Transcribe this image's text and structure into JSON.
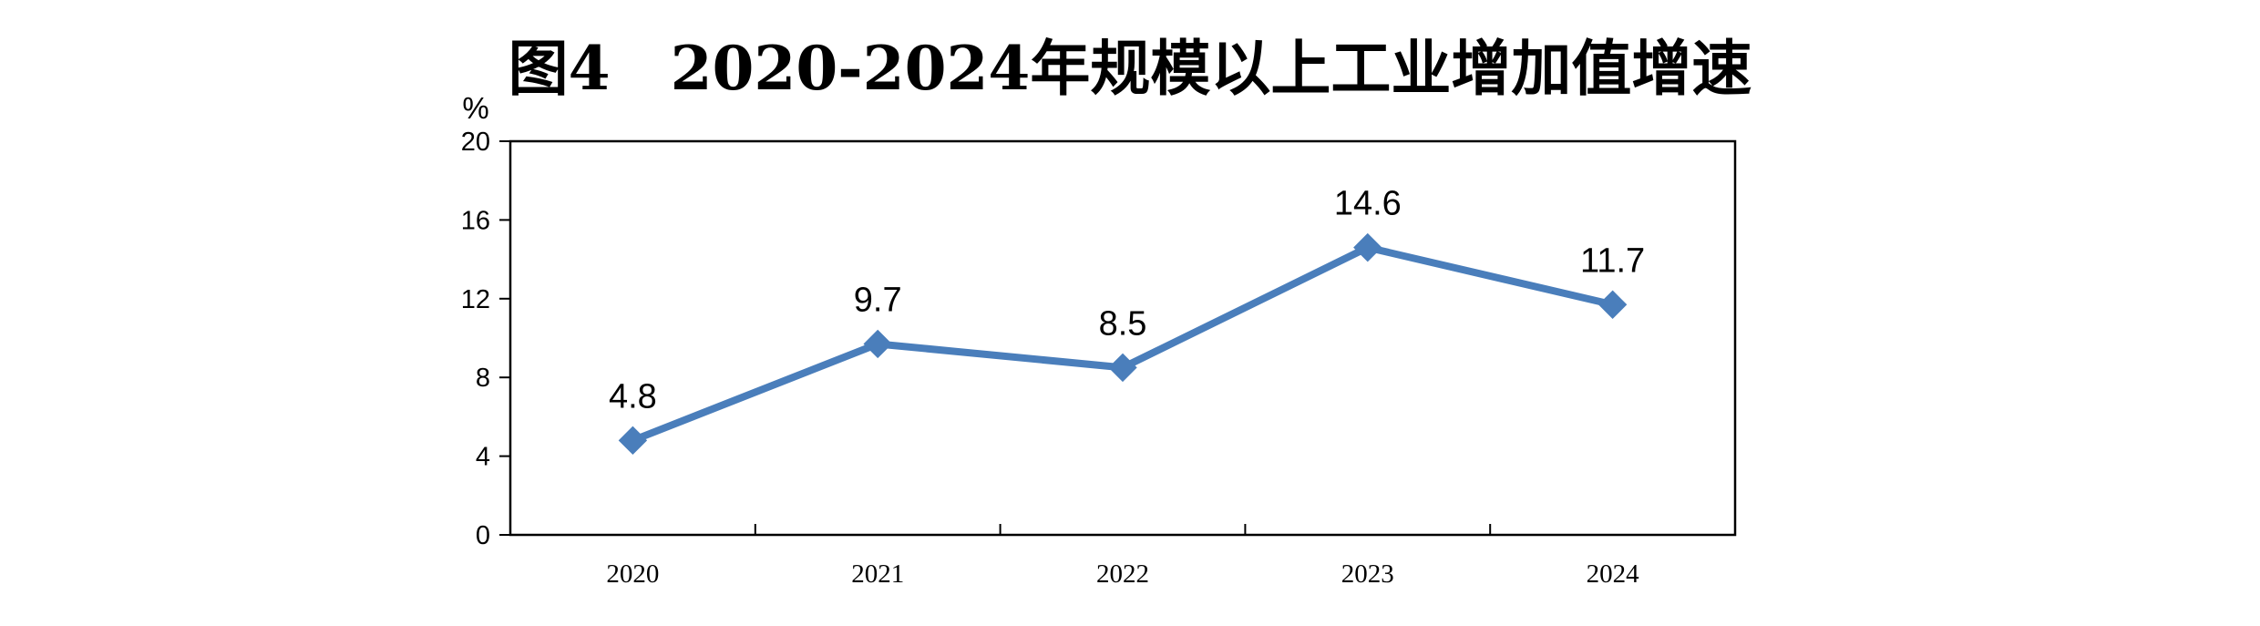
{
  "chart_data": {
    "type": "line",
    "title": "图4　2020-2024年规模以上工业增加值增速",
    "unit": "%",
    "categories": [
      "2020",
      "2021",
      "2022",
      "2023",
      "2024"
    ],
    "series": [
      {
        "values": [
          4.8,
          9.7,
          8.5,
          14.6,
          11.7
        ],
        "data_labels": [
          "4.8",
          "9.7",
          "8.5",
          "14.6",
          "11.7"
        ]
      }
    ],
    "ylim": [
      0,
      20
    ],
    "yticks": [
      0,
      4,
      8,
      12,
      16,
      20
    ],
    "ytick_labels": [
      "0",
      "4",
      "8",
      "12",
      "16",
      "20"
    ],
    "grid": false,
    "legend": "none",
    "line_color": "#4a7ebb",
    "marker": "diamond"
  }
}
